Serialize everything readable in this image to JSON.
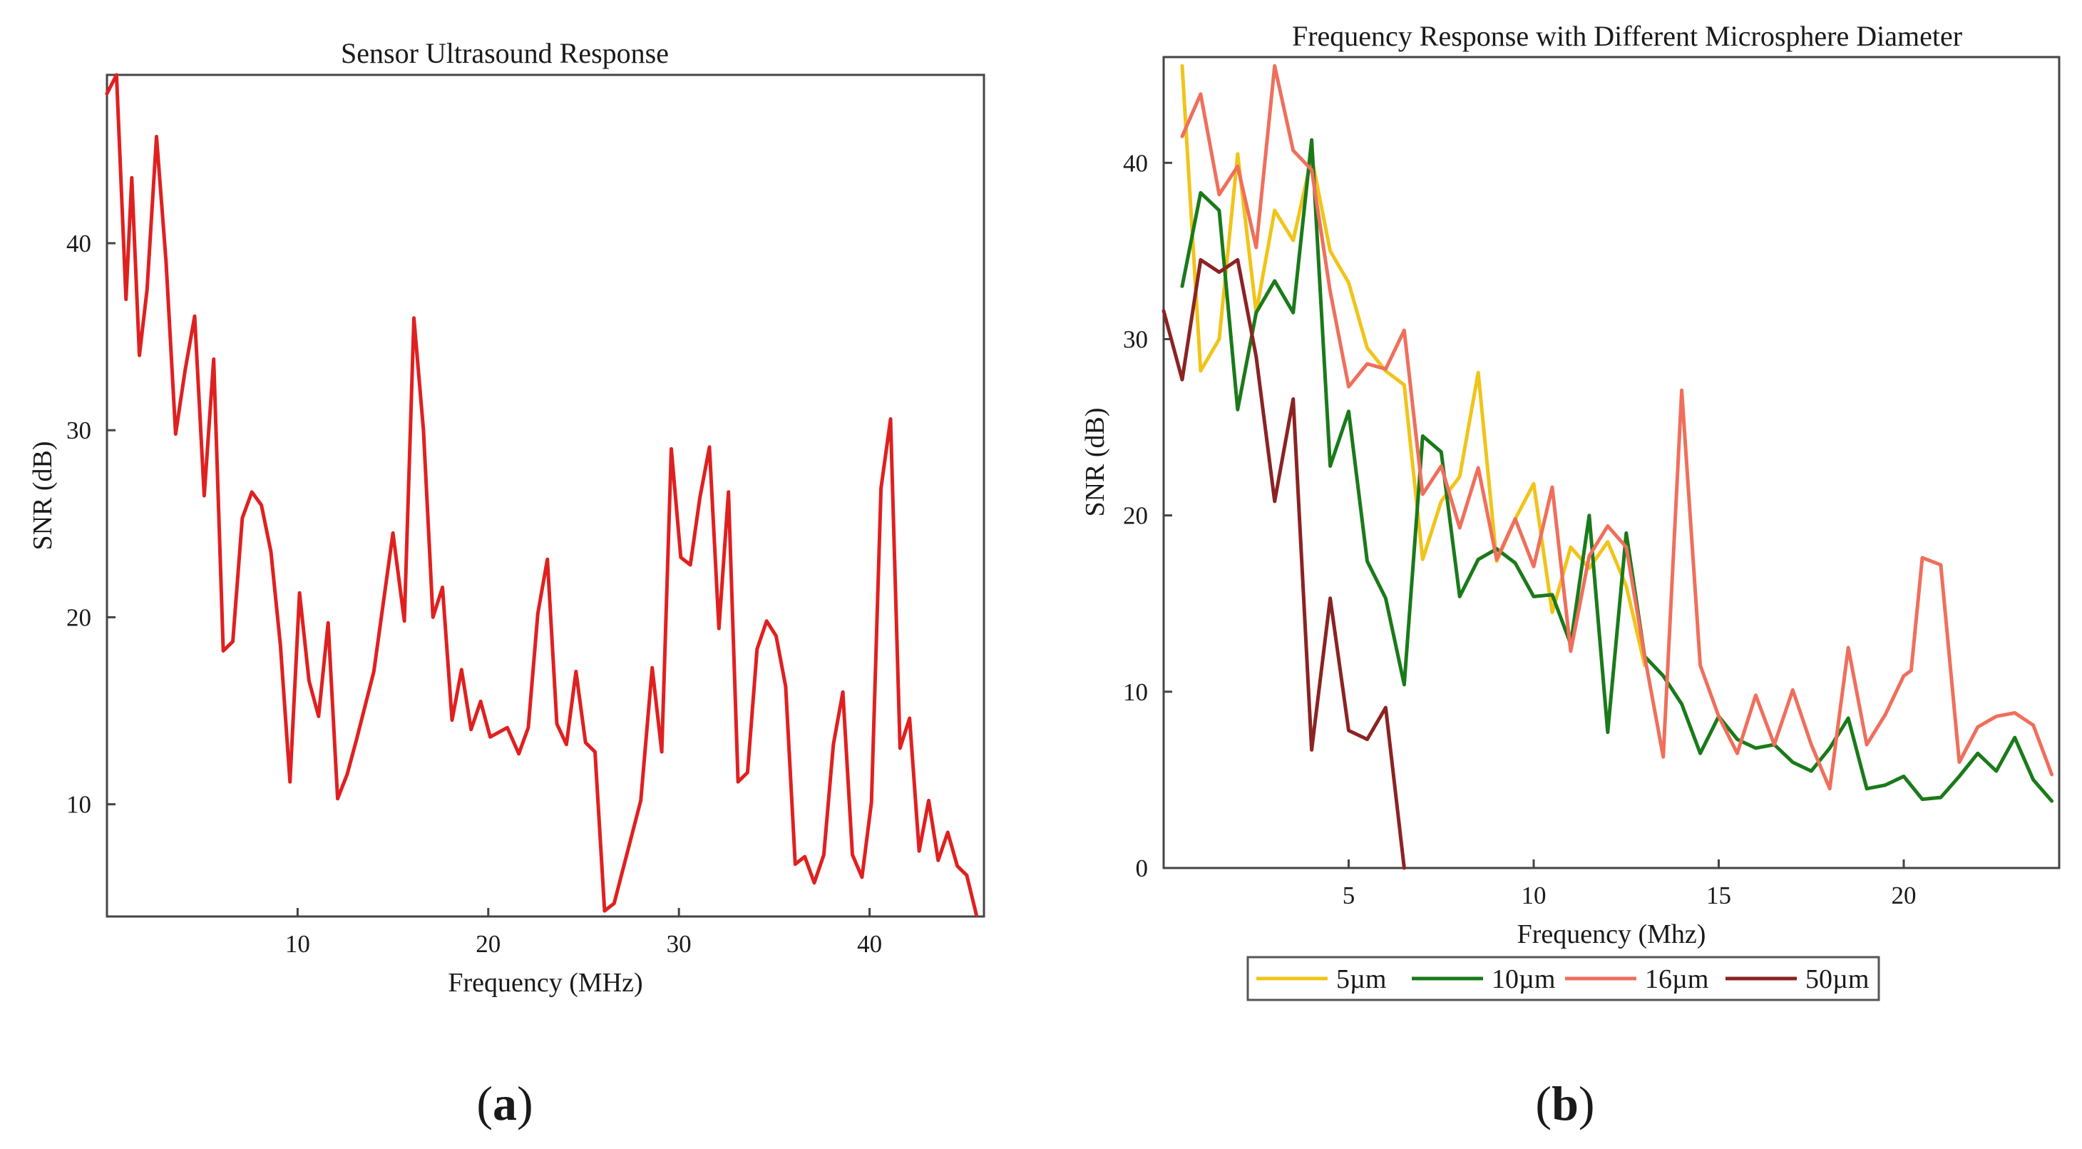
{
  "chart_data": [
    {
      "panel": "a",
      "type": "line",
      "title": "Sensor Ultrasound Response",
      "xlabel": "Frequency (MHz)",
      "ylabel": "SNR (dB)",
      "xlim": [
        0,
        46
      ],
      "ylim": [
        4,
        49
      ],
      "xticks": [
        10,
        20,
        30,
        40
      ],
      "yticks": [
        10,
        20,
        30,
        40
      ],
      "grid": false,
      "legend": null,
      "series": [
        {
          "name": "SNR",
          "color": "#e02020",
          "x": [
            0.0,
            0.5,
            1.0,
            1.3,
            1.7,
            2.1,
            2.6,
            3.1,
            3.6,
            4.1,
            4.6,
            5.1,
            5.6,
            6.1,
            6.6,
            7.1,
            7.6,
            8.1,
            8.6,
            9.1,
            9.6,
            10.1,
            10.6,
            11.1,
            11.6,
            12.1,
            12.6,
            13.1,
            14.0,
            15.0,
            15.6,
            16.1,
            16.6,
            17.1,
            17.6,
            18.1,
            18.6,
            19.1,
            19.6,
            20.1,
            21.0,
            21.6,
            22.1,
            22.6,
            23.1,
            23.6,
            24.1,
            24.6,
            25.1,
            25.6,
            26.1,
            26.6,
            28.0,
            28.6,
            29.1,
            29.6,
            30.1,
            30.6,
            31.1,
            31.6,
            32.1,
            32.6,
            33.1,
            33.6,
            34.1,
            34.6,
            35.1,
            35.6,
            36.1,
            36.6,
            37.1,
            37.6,
            38.1,
            38.6,
            39.1,
            39.6,
            40.1,
            40.6,
            41.1,
            41.6,
            42.1,
            42.6,
            43.1,
            43.6,
            44.1,
            44.6,
            45.1,
            45.6
          ],
          "y": [
            48.0,
            49.0,
            37.0,
            43.5,
            34.0,
            37.5,
            45.7,
            39.0,
            29.8,
            33.2,
            36.1,
            26.5,
            33.8,
            18.2,
            18.7,
            25.3,
            26.7,
            26.0,
            23.5,
            18.5,
            11.2,
            21.3,
            16.6,
            14.7,
            19.7,
            10.3,
            11.6,
            13.5,
            17.1,
            24.5,
            19.8,
            36.0,
            30.0,
            20.0,
            21.6,
            14.5,
            17.2,
            14.0,
            15.5,
            13.6,
            14.1,
            12.7,
            14.1,
            20.2,
            23.1,
            14.3,
            13.2,
            17.1,
            13.3,
            12.8,
            4.3,
            4.7,
            10.2,
            17.3,
            12.8,
            29.0,
            23.2,
            22.8,
            26.4,
            29.1,
            19.4,
            26.7,
            11.2,
            11.7,
            18.3,
            19.8,
            19.0,
            16.3,
            6.8,
            7.2,
            5.8,
            7.3,
            13.2,
            16.0,
            7.3,
            6.1,
            10.1,
            26.9,
            30.6,
            13.0,
            14.6,
            7.5,
            10.2,
            7.0,
            8.5,
            6.7,
            6.2,
            4.1
          ]
        }
      ]
    },
    {
      "panel": "b",
      "type": "line",
      "title": "Frequency Response with Different Microsphere Diameter",
      "xlabel": "Frequency (Mhz)",
      "ylabel": "SNR (dB)",
      "xlim": [
        0,
        24.2
      ],
      "ylim": [
        0,
        46
      ],
      "xticks": [
        5,
        10,
        15,
        20
      ],
      "yticks": [
        0,
        10,
        20,
        30,
        40
      ],
      "grid": false,
      "legend": "bottom",
      "series": [
        {
          "name": "5µm",
          "color": "#f0c419",
          "x": [
            0.5,
            1.0,
            1.5,
            2.0,
            2.5,
            3.0,
            3.5,
            4.0,
            4.5,
            5.0,
            5.5,
            6.0,
            6.5,
            7.0,
            7.5,
            8.0,
            8.5,
            9.0,
            9.5,
            10.0,
            10.5,
            11.0,
            11.5,
            12.0,
            12.5,
            13.0
          ],
          "y": [
            45.5,
            28.2,
            30.0,
            40.5,
            31.5,
            37.3,
            35.6,
            40.3,
            35.0,
            33.2,
            29.5,
            28.2,
            27.4,
            17.5,
            20.8,
            22.2,
            28.1,
            17.4,
            19.8,
            21.8,
            14.5,
            18.2,
            17.0,
            18.5,
            16.0,
            11.5
          ]
        },
        {
          "name": "10µm",
          "color": "#1a7a1a",
          "x": [
            0.5,
            1.0,
            1.5,
            2.0,
            2.5,
            3.0,
            3.5,
            4.0,
            4.5,
            5.0,
            5.5,
            6.0,
            6.5,
            7.0,
            7.5,
            8.0,
            8.5,
            9.0,
            9.5,
            10.0,
            10.5,
            11.0,
            11.5,
            12.0,
            12.5,
            13.0,
            13.5,
            14.0,
            14.5,
            15.0,
            15.5,
            16.0,
            16.5,
            17.0,
            17.5,
            18.0,
            18.5,
            19.0,
            19.5,
            20.0,
            20.5,
            21.0,
            21.5,
            22.0,
            22.5,
            23.0,
            23.5,
            24.0
          ],
          "y": [
            33.0,
            38.3,
            37.3,
            26.0,
            31.5,
            33.3,
            31.5,
            41.3,
            22.8,
            25.9,
            17.4,
            15.3,
            10.4,
            24.5,
            23.6,
            15.4,
            17.5,
            18.1,
            17.3,
            15.4,
            15.5,
            12.7,
            20.0,
            7.7,
            19.0,
            12.0,
            10.9,
            9.3,
            6.5,
            8.6,
            7.3,
            6.8,
            7.0,
            6.0,
            5.5,
            6.8,
            8.5,
            4.5,
            4.7,
            5.2,
            3.9,
            4.0,
            5.2,
            6.5,
            5.5,
            7.4,
            5.0,
            3.8
          ]
        },
        {
          "name": "16µm",
          "color": "#ef6f5c",
          "x": [
            0.5,
            1.0,
            1.5,
            2.0,
            2.5,
            3.0,
            3.5,
            4.0,
            4.5,
            5.0,
            5.5,
            6.0,
            6.5,
            7.0,
            7.5,
            8.0,
            8.5,
            9.0,
            9.5,
            10.0,
            10.5,
            11.0,
            11.5,
            12.0,
            12.5,
            13.0,
            13.5,
            14.0,
            14.5,
            15.0,
            15.5,
            16.0,
            16.5,
            17.0,
            17.5,
            18.0,
            18.5,
            19.0,
            19.5,
            20.0,
            20.2,
            20.5,
            21.0,
            21.5,
            22.0,
            22.5,
            23.0,
            23.5,
            24.0
          ],
          "y": [
            41.5,
            43.9,
            38.2,
            39.8,
            35.2,
            45.5,
            40.7,
            39.6,
            32.7,
            27.3,
            28.6,
            28.3,
            30.5,
            21.2,
            22.8,
            19.3,
            22.7,
            17.5,
            19.8,
            17.1,
            21.6,
            12.3,
            17.7,
            19.4,
            18.2,
            12.0,
            6.3,
            27.1,
            11.5,
            8.6,
            6.5,
            9.8,
            7.0,
            10.1,
            7.0,
            4.5,
            12.5,
            7.0,
            8.7,
            10.9,
            11.2,
            17.6,
            17.2,
            6.0,
            8.0,
            8.6,
            8.8,
            8.1,
            5.3
          ]
        },
        {
          "name": "50µm",
          "color": "#8b2323",
          "x": [
            0.0,
            0.5,
            1.0,
            1.5,
            2.0,
            2.5,
            3.0,
            3.5,
            4.0,
            4.5,
            5.0,
            5.5,
            6.0,
            6.5
          ],
          "y": [
            31.6,
            27.7,
            34.5,
            33.8,
            34.5,
            29.0,
            20.8,
            26.6,
            6.7,
            15.3,
            7.8,
            7.3,
            9.1,
            0.0
          ]
        }
      ]
    }
  ],
  "panels": {
    "a": {
      "label_open": "(",
      "label_letter": "a",
      "label_close": ")"
    },
    "b": {
      "label_open": "(",
      "label_letter": "b",
      "label_close": ")"
    }
  }
}
